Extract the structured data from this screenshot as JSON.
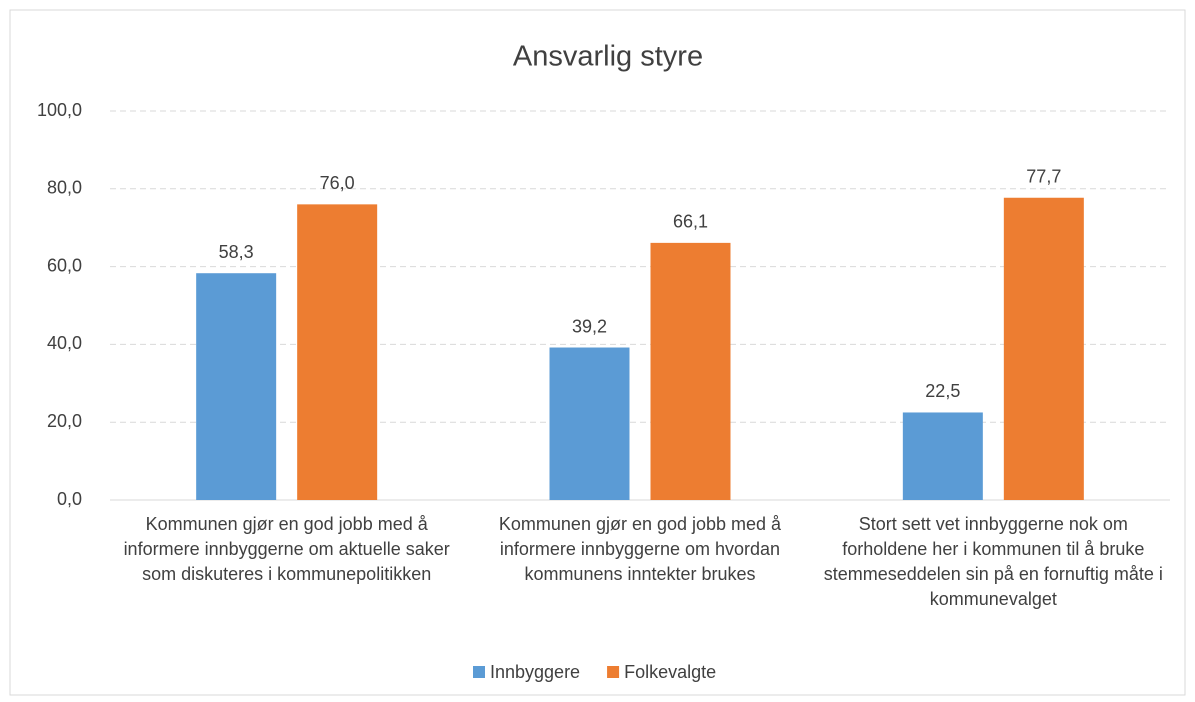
{
  "chart_data": {
    "type": "bar",
    "title": "Ansvarlig styre",
    "categories": [
      "Kommunen gjør en god jobb med å informere innbyggerne om aktuelle saker som diskuteres i kommunepolitikken",
      "Kommunen gjør en god jobb med å informere innbyggerne om hvordan kommunens inntekter brukes",
      "Stort sett vet innbyggerne nok om forholdene her i kommunen til å bruke stemmeseddelen sin på en fornuftig måte i kommunevalget"
    ],
    "series": [
      {
        "name": "Innbyggere",
        "color": "#5b9bd5",
        "values": [
          58.3,
          39.2,
          22.5
        ],
        "value_labels": [
          "58,3",
          "39,2",
          "22,5"
        ]
      },
      {
        "name": "Folkevalgte",
        "color": "#ed7d31",
        "values": [
          76.0,
          66.1,
          77.7
        ],
        "value_labels": [
          "76,0",
          "66,1",
          "77,7"
        ]
      }
    ],
    "ylim": [
      0,
      100
    ],
    "yticks": [
      {
        "value": 0,
        "label": "0,0"
      },
      {
        "value": 20,
        "label": "20,0"
      },
      {
        "value": 40,
        "label": "40,0"
      },
      {
        "value": 60,
        "label": "60,0"
      },
      {
        "value": 80,
        "label": "80,0"
      },
      {
        "value": 100,
        "label": "100,0"
      }
    ],
    "grid": true,
    "legend": "bottom"
  }
}
